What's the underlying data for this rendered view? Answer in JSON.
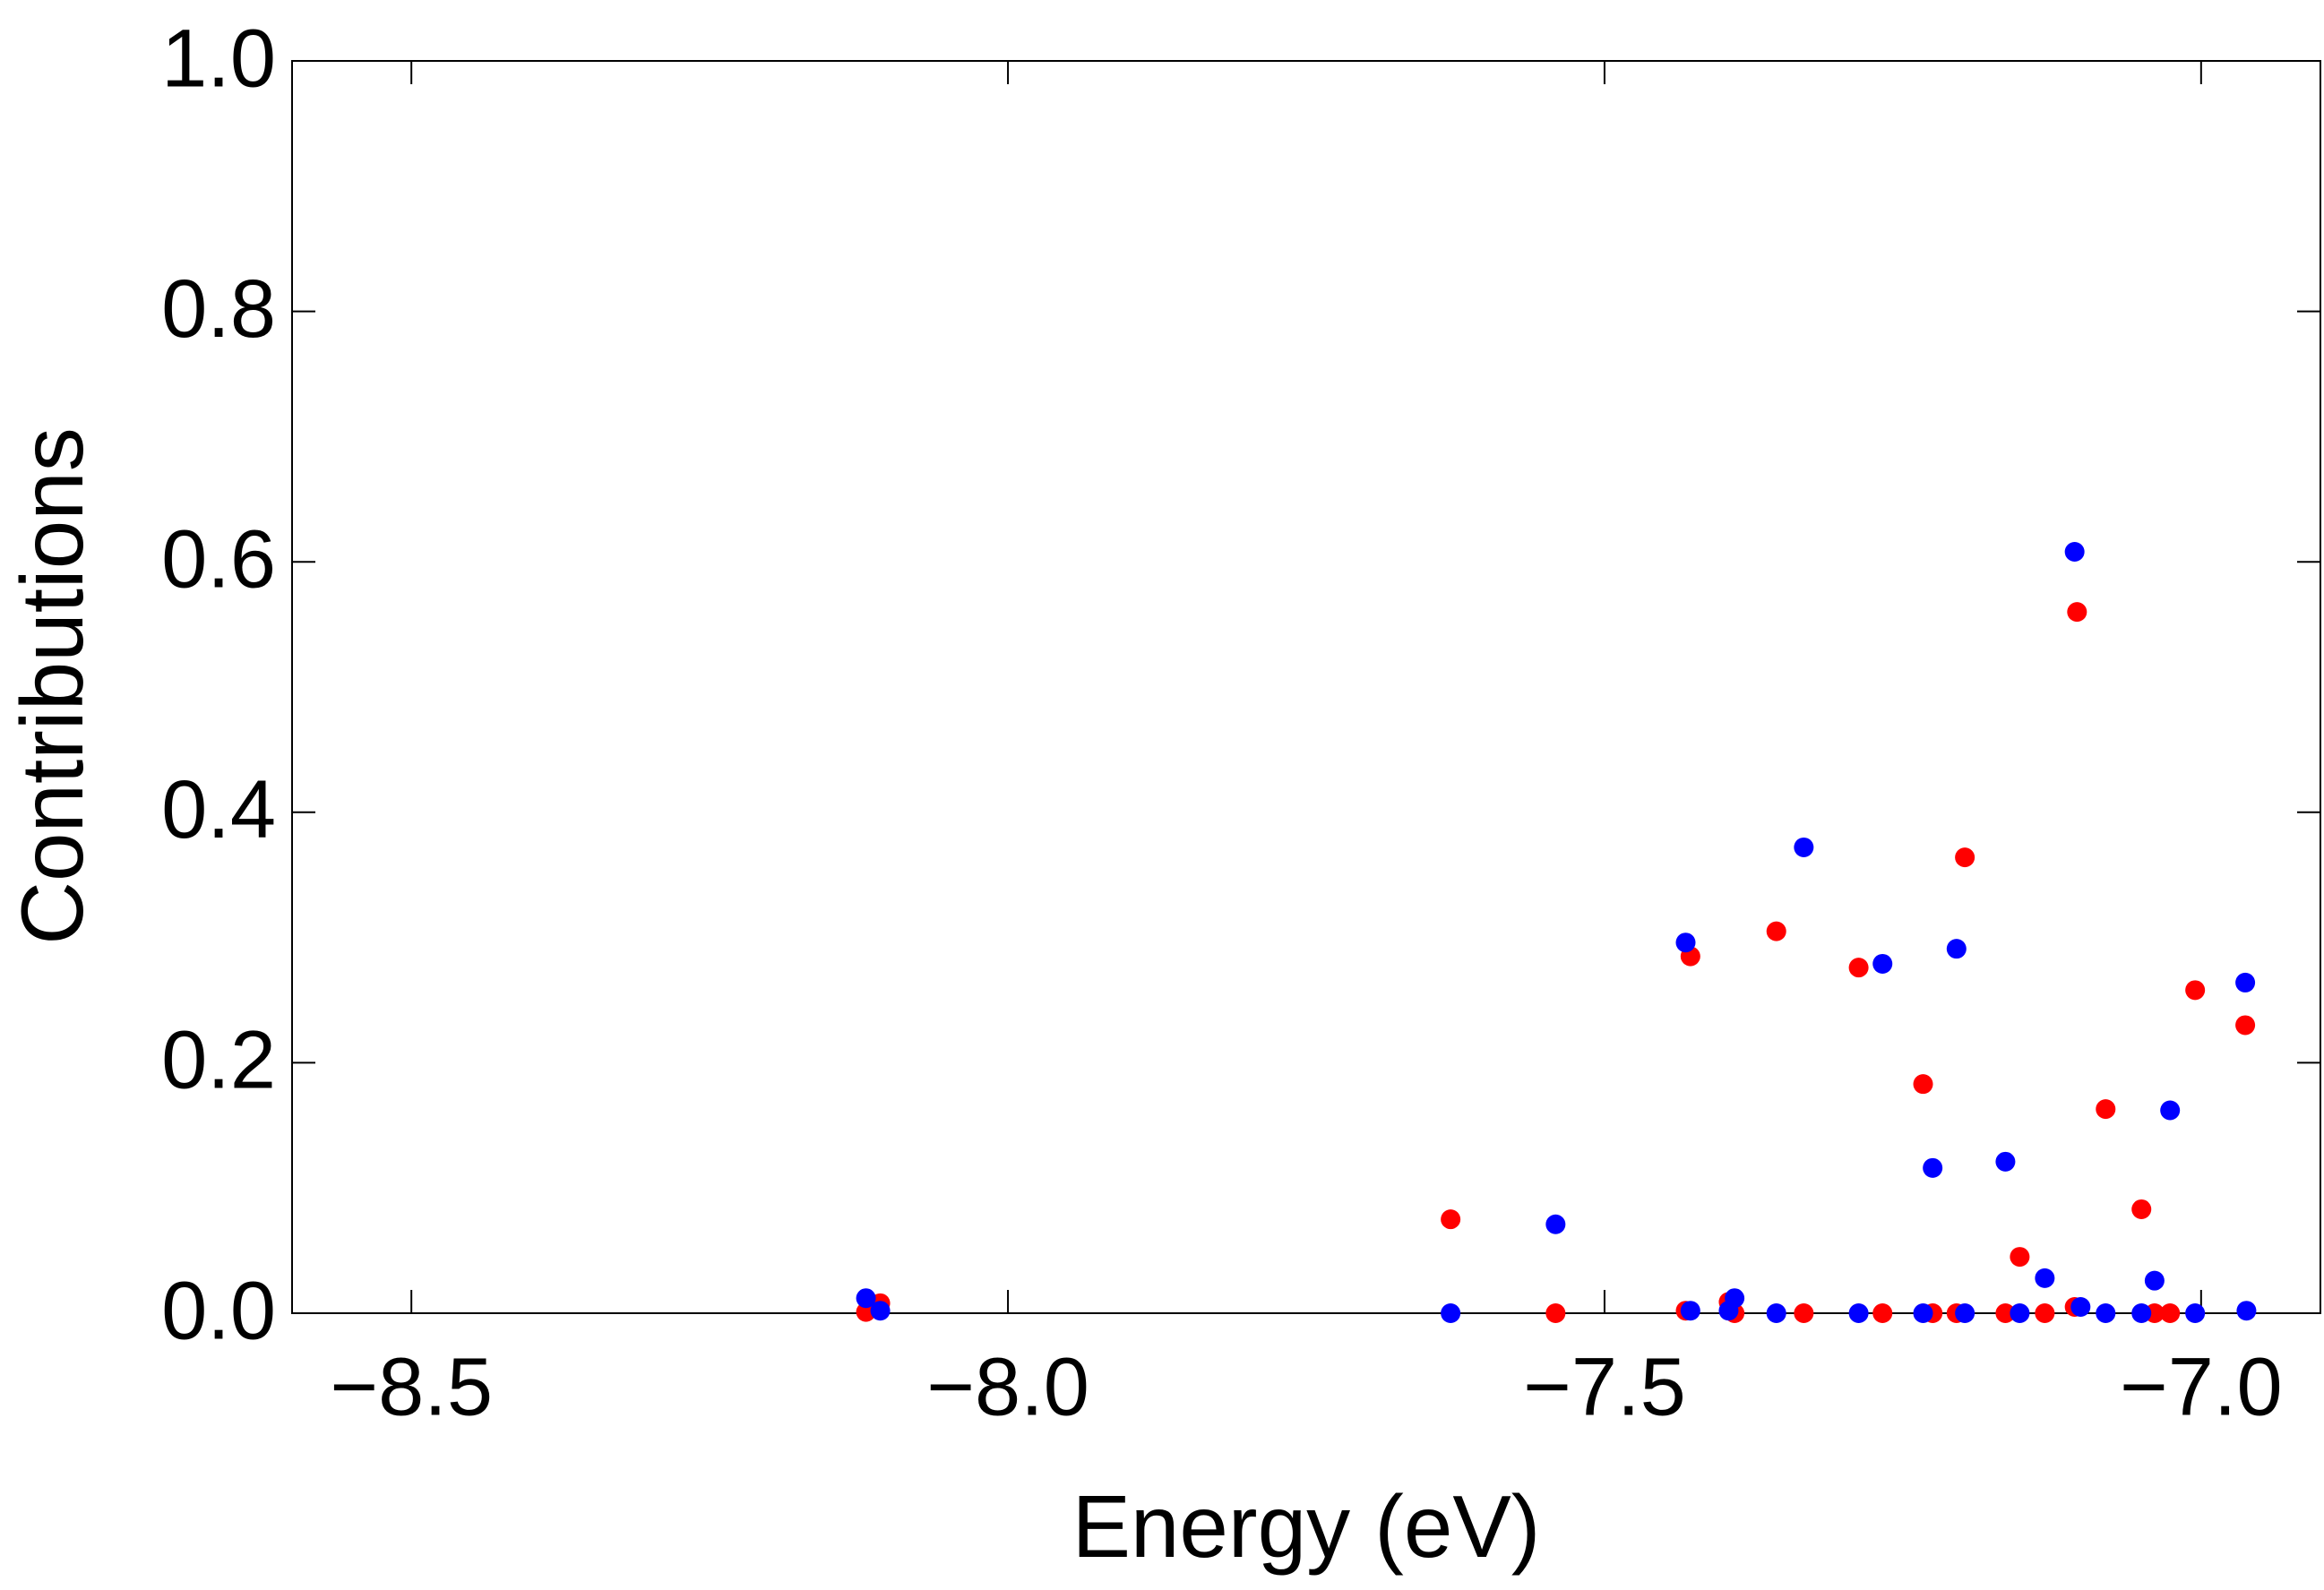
{
  "chart_data": {
    "type": "scatter",
    "xlabel": "Energy (eV)",
    "ylabel": "Contributions",
    "xlim": [
      -8.6,
      -6.9
    ],
    "ylim": [
      0,
      1
    ],
    "xticks": [
      {
        "value": -8.5,
        "label": "−8.5"
      },
      {
        "value": -8.0,
        "label": "−8.0"
      },
      {
        "value": -7.5,
        "label": "−7.5"
      },
      {
        "value": -7.0,
        "label": "−7.0"
      }
    ],
    "yticks": [
      {
        "value": 0,
        "label": "0.0"
      },
      0.2,
      0.4,
      0.6,
      0.8,
      {
        "value": 1,
        "label": "1.0"
      }
    ],
    "series": [
      {
        "color": "#ff0000",
        "x": [
          -8.119,
          -8.107,
          -7.629,
          -7.541,
          -7.432,
          -7.428,
          -7.396,
          -7.391,
          -7.356,
          -7.333,
          -7.287,
          -7.267,
          -7.233,
          -7.225,
          -7.205,
          -7.198,
          -7.164,
          -7.152,
          -7.131,
          -7.106,
          -7.104,
          -7.08,
          -7.05,
          -7.039,
          -7.026,
          -7.005,
          -6.963
        ],
        "values": [
          0.001,
          0.008,
          0.075,
          0,
          0.002,
          0.285,
          0.009,
          0,
          0.305,
          0,
          0.276,
          0,
          0.183,
          0,
          0,
          0.364,
          0,
          0.045,
          0,
          0.005,
          0.56,
          0.163,
          0.083,
          0,
          0,
          0.258,
          0.23
        ]
      },
      {
        "color": "#0000ff",
        "x": [
          -8.119,
          -8.107,
          -7.629,
          -7.541,
          -7.432,
          -7.428,
          -7.396,
          -7.391,
          -7.356,
          -7.333,
          -7.287,
          -7.267,
          -7.233,
          -7.225,
          -7.205,
          -7.198,
          -7.164,
          -7.152,
          -7.131,
          -7.106,
          -7.101,
          -7.08,
          -7.05,
          -7.039,
          -7.026,
          -7.005,
          -6.963,
          -6.962
        ],
        "values": [
          0.012,
          0.002,
          0,
          0.071,
          0.296,
          0.002,
          0.002,
          0.012,
          0,
          0.372,
          0,
          0.279,
          0,
          0.116,
          0.291,
          0,
          0.121,
          0,
          0.028,
          0.608,
          0.005,
          0,
          0,
          0.026,
          0.162,
          0,
          0.264,
          0.002
        ]
      }
    ]
  }
}
